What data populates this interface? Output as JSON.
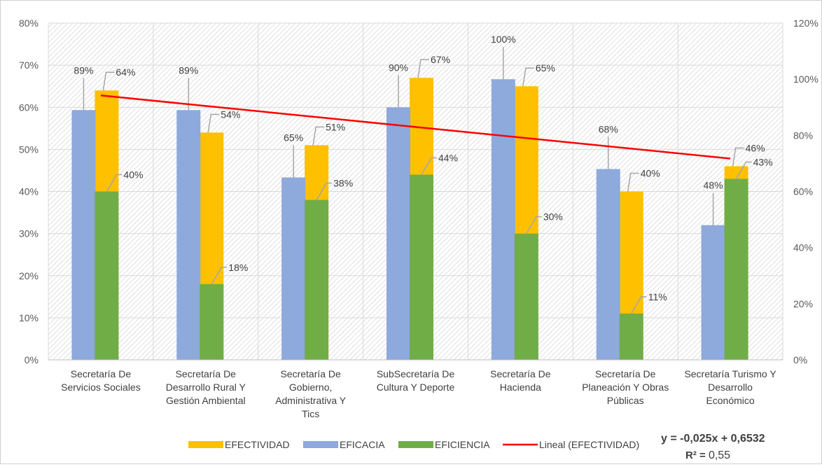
{
  "chart_data": {
    "type": "bar",
    "categories": [
      [
        "Secretaría De",
        "Servicios Sociales"
      ],
      [
        "Secretaría De",
        "Desarrollo Rural Y",
        "Gestión Ambiental"
      ],
      [
        "Secretaría De",
        "Gobierno,",
        "Administrativa Y",
        "Tics"
      ],
      [
        "SubSecretaría De",
        "Cultura Y Deporte"
      ],
      [
        "Secretaría De",
        "Hacienda"
      ],
      [
        "Secretaría De",
        "Planeación Y Obras",
        "Públicas"
      ],
      [
        "Secretaría Turismo Y",
        "Desarrollo",
        "Económico"
      ]
    ],
    "series": [
      {
        "name": "EFECTIVIDAD",
        "color": "#FFC000",
        "axis": "left",
        "values": [
          64,
          54,
          51,
          67,
          65,
          40,
          46
        ],
        "labels": [
          "64%",
          "54%",
          "51%",
          "67%",
          "65%",
          "40%",
          "46%"
        ]
      },
      {
        "name": "EFICACIA",
        "color": "#8EA9DB",
        "axis": "right",
        "values": [
          89,
          89,
          65,
          90,
          100,
          68,
          48
        ],
        "labels": [
          "89%",
          "89%",
          "65%",
          "90%",
          "100%",
          "68%",
          "48%"
        ]
      },
      {
        "name": "EFICIENCIA",
        "color": "#70AD47",
        "axis": "left",
        "values": [
          40,
          18,
          38,
          44,
          30,
          11,
          43
        ],
        "labels": [
          "40%",
          "18%",
          "38%",
          "44%",
          "30%",
          "11%",
          "43%"
        ]
      }
    ],
    "trendline": {
      "name": "Lineal (EFECTIVIDAD)",
      "color": "#FF0000",
      "start": 62.82,
      "end": 47.82
    },
    "y_left": {
      "ylim": [
        0,
        80
      ],
      "ticks": [
        "0%",
        "10%",
        "20%",
        "30%",
        "40%",
        "50%",
        "60%",
        "70%",
        "80%"
      ]
    },
    "y_right": {
      "ylim": [
        0,
        120
      ],
      "ticks": [
        "0%",
        "20%",
        "40%",
        "60%",
        "80%",
        "100%",
        "120%"
      ]
    },
    "equation": "y = -0,025x + 0,6532",
    "r_squared_prefix": "R² = ",
    "r_squared_value": "0,55",
    "legend_position": "bottom",
    "grid": true
  }
}
